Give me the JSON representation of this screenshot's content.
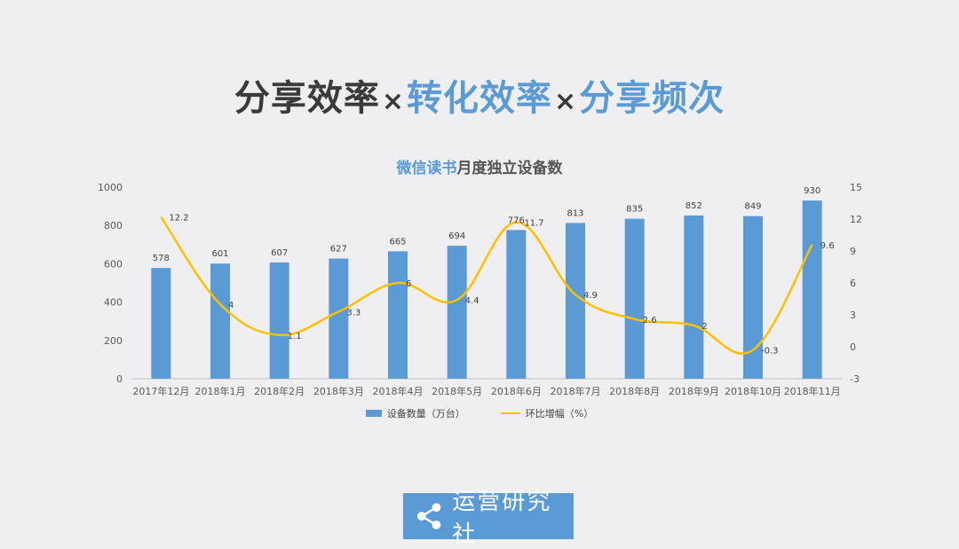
{
  "headline": {
    "part1": "分享效率",
    "times1": "×",
    "part2": "转化效率",
    "times2": "×",
    "part3": "分享频次"
  },
  "chart_data": {
    "type": "bar",
    "title_highlight": "微信读书",
    "title_rest": "月度独立设备数",
    "categories": [
      "2017年12月",
      "2018年1月",
      "2018年2月",
      "2018年3月",
      "2018年4月",
      "2018年5月",
      "2018年6月",
      "2018年7月",
      "2018年8月",
      "2018年9月",
      "2018年10月",
      "2018年11月"
    ],
    "series": [
      {
        "name": "设备数量（万台）",
        "type": "bar",
        "axis": "left",
        "color": "#5b9bd5",
        "values": [
          578,
          601,
          607,
          627,
          665,
          694,
          776,
          813,
          835,
          852,
          849,
          930
        ]
      },
      {
        "name": "环比增幅（%）",
        "type": "line",
        "axis": "right",
        "color": "#ffc000",
        "values": [
          12.2,
          4,
          1.1,
          3.3,
          6,
          4.4,
          11.7,
          4.9,
          2.6,
          2,
          -0.3,
          9.6
        ]
      }
    ],
    "y_left": {
      "min": 0,
      "max": 1000,
      "ticks": [
        0,
        200,
        400,
        600,
        800,
        1000
      ]
    },
    "y_right": {
      "min": -3,
      "max": 15,
      "ticks": [
        -3,
        0,
        3,
        6,
        9,
        12,
        15
      ]
    },
    "grid": false,
    "legend_position": "bottom"
  },
  "logo": {
    "text": "运营研究社",
    "icon": "share-icon"
  }
}
